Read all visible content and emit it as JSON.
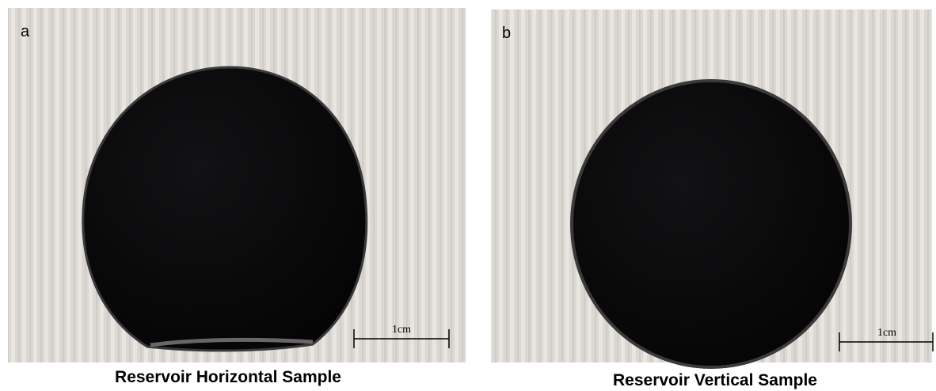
{
  "panels": [
    {
      "label": "a",
      "scale_bar": "1cm",
      "caption": "Reservoir Horizontal Sample"
    },
    {
      "label": "b",
      "scale_bar": "1cm",
      "caption": "Reservoir Vertical Sample"
    }
  ]
}
